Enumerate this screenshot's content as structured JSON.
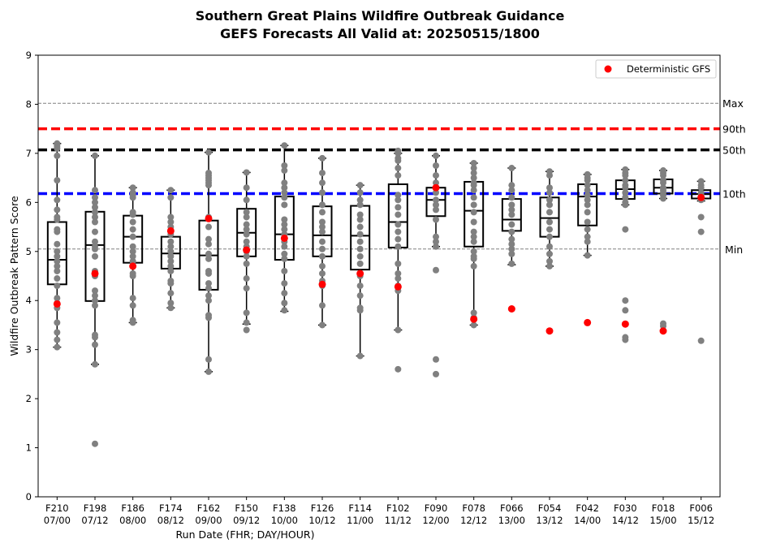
{
  "chart_data": {
    "type": "box",
    "title": [
      "Southern Great Plains Wildfire Outbreak Guidance",
      "GEFS Forecasts All Valid at: 20250515/1800"
    ],
    "xlabel": "Run Date (FHR; DAY/HOUR)",
    "ylabel": "Wildfire Outbreak Pattern Score",
    "ylim": [
      0,
      9
    ],
    "yticks": [
      "0",
      "1",
      "2",
      "3",
      "4",
      "5",
      "6",
      "7",
      "8",
      "9"
    ],
    "categories": [
      [
        "F210",
        "07/00"
      ],
      [
        "F198",
        "07/12"
      ],
      [
        "F186",
        "08/00"
      ],
      [
        "F174",
        "08/12"
      ],
      [
        "F162",
        "09/00"
      ],
      [
        "F150",
        "09/12"
      ],
      [
        "F138",
        "10/00"
      ],
      [
        "F126",
        "10/12"
      ],
      [
        "F114",
        "11/00"
      ],
      [
        "F102",
        "11/12"
      ],
      [
        "F090",
        "12/00"
      ],
      [
        "F078",
        "12/12"
      ],
      [
        "F066",
        "13/00"
      ],
      [
        "F054",
        "13/12"
      ],
      [
        "F042",
        "14/00"
      ],
      [
        "F030",
        "14/12"
      ],
      [
        "F018",
        "15/00"
      ],
      [
        "F006",
        "15/12"
      ]
    ],
    "boxes": [
      {
        "whislo": 3.05,
        "q1": 4.33,
        "med": 4.83,
        "q3": 5.6,
        "whishi": 7.2
      },
      {
        "whislo": 2.7,
        "q1": 3.99,
        "med": 5.13,
        "q3": 5.81,
        "whishi": 6.95
      },
      {
        "whislo": 3.55,
        "q1": 4.77,
        "med": 5.3,
        "q3": 5.73,
        "whishi": 6.3
      },
      {
        "whislo": 3.85,
        "q1": 4.65,
        "med": 4.96,
        "q3": 5.3,
        "whishi": 6.25
      },
      {
        "whislo": 2.55,
        "q1": 4.22,
        "med": 4.92,
        "q3": 5.63,
        "whishi": 7.02
      },
      {
        "whislo": 3.52,
        "q1": 4.9,
        "med": 5.38,
        "q3": 5.87,
        "whishi": 6.61
      },
      {
        "whislo": 3.78,
        "q1": 4.83,
        "med": 5.35,
        "q3": 6.12,
        "whishi": 7.16
      },
      {
        "whislo": 3.5,
        "q1": 4.9,
        "med": 5.33,
        "q3": 5.92,
        "whishi": 6.9
      },
      {
        "whislo": 2.87,
        "q1": 4.63,
        "med": 5.32,
        "q3": 5.93,
        "whishi": 6.35
      },
      {
        "whislo": 3.4,
        "q1": 5.08,
        "med": 5.6,
        "q3": 6.37,
        "whishi": 7.0
      },
      {
        "whislo": 5.1,
        "q1": 5.72,
        "med": 6.05,
        "q3": 6.3,
        "whishi": 6.95
      },
      {
        "whislo": 3.5,
        "q1": 5.1,
        "med": 5.83,
        "q3": 6.42,
        "whishi": 6.8
      },
      {
        "whislo": 4.73,
        "q1": 5.42,
        "med": 5.65,
        "q3": 6.07,
        "whishi": 6.7
      },
      {
        "whislo": 4.7,
        "q1": 5.3,
        "med": 5.68,
        "q3": 6.1,
        "whishi": 6.63
      },
      {
        "whislo": 4.92,
        "q1": 5.53,
        "med": 6.12,
        "q3": 6.37,
        "whishi": 6.57
      },
      {
        "whislo": 5.95,
        "q1": 6.07,
        "med": 6.27,
        "q3": 6.45,
        "whishi": 6.67
      },
      {
        "whislo": 6.08,
        "q1": 6.18,
        "med": 6.3,
        "q3": 6.47,
        "whishi": 6.65
      },
      {
        "whislo": 6.03,
        "q1": 6.08,
        "med": 6.17,
        "q3": 6.25,
        "whishi": 6.43
      }
    ],
    "members": [
      [
        7.2,
        7.15,
        7.1,
        6.95,
        6.45,
        6.05,
        5.85,
        5.7,
        5.65,
        5.45,
        5.4,
        5.15,
        5.0,
        4.9,
        4.8,
        4.7,
        4.6,
        4.45,
        4.3,
        4.05,
        3.95,
        3.85,
        3.55,
        3.35,
        3.2,
        3.05
      ],
      [
        6.95,
        6.25,
        6.1,
        6.0,
        5.9,
        5.8,
        5.7,
        5.6,
        5.4,
        5.2,
        5.1,
        5.05,
        4.9,
        4.6,
        4.5,
        4.2,
        4.1,
        4.0,
        3.9,
        3.3,
        3.25,
        3.1,
        2.7,
        1.08
      ],
      [
        6.3,
        6.2,
        6.15,
        6.1,
        5.8,
        5.75,
        5.6,
        5.45,
        5.3,
        5.1,
        5.0,
        4.9,
        4.8,
        4.7,
        4.55,
        4.5,
        4.05,
        3.9,
        3.6,
        3.55
      ],
      [
        6.25,
        6.1,
        5.7,
        5.6,
        5.5,
        5.4,
        5.35,
        5.2,
        5.1,
        5.0,
        4.9,
        4.8,
        4.7,
        4.6,
        4.4,
        4.35,
        4.15,
        3.95,
        3.85
      ],
      [
        7.02,
        6.6,
        6.55,
        6.5,
        6.45,
        6.4,
        6.35,
        5.7,
        5.5,
        5.25,
        5.15,
        4.95,
        4.85,
        4.6,
        4.55,
        4.35,
        4.25,
        4.1,
        4.0,
        3.7,
        3.65,
        2.8,
        2.55
      ],
      [
        6.61,
        6.3,
        6.05,
        5.8,
        5.7,
        5.55,
        5.45,
        5.35,
        5.2,
        5.1,
        5.0,
        4.9,
        4.75,
        4.45,
        4.25,
        3.75,
        3.55,
        3.4
      ],
      [
        7.16,
        6.75,
        6.65,
        6.4,
        6.3,
        6.2,
        6.1,
        5.95,
        5.65,
        5.55,
        5.45,
        5.35,
        5.2,
        5.1,
        4.95,
        4.85,
        4.6,
        4.35,
        4.15,
        3.95,
        3.8
      ],
      [
        6.9,
        6.6,
        6.4,
        6.2,
        5.95,
        5.8,
        5.6,
        5.5,
        5.4,
        5.2,
        5.05,
        4.9,
        4.7,
        4.55,
        4.4,
        4.3,
        3.9,
        3.5
      ],
      [
        6.35,
        6.2,
        6.05,
        5.95,
        5.75,
        5.65,
        5.5,
        5.35,
        5.2,
        5.05,
        4.9,
        4.75,
        4.5,
        4.3,
        4.1,
        3.85,
        3.8,
        2.87
      ],
      [
        7.05,
        7.0,
        6.9,
        6.85,
        6.7,
        6.55,
        6.15,
        6.05,
        5.9,
        5.75,
        5.55,
        5.4,
        5.25,
        5.1,
        4.75,
        4.55,
        4.45,
        4.3,
        4.2,
        3.4,
        2.6
      ],
      [
        6.95,
        6.75,
        6.55,
        6.4,
        6.3,
        6.2,
        6.05,
        5.95,
        5.85,
        5.65,
        5.3,
        5.2,
        5.1,
        4.62,
        2.8,
        2.5
      ],
      [
        6.8,
        6.7,
        6.6,
        6.5,
        6.4,
        6.35,
        6.25,
        6.1,
        5.95,
        5.8,
        5.6,
        5.4,
        5.3,
        5.2,
        5.0,
        4.9,
        4.85,
        4.7,
        3.75,
        3.65,
        3.5
      ],
      [
        6.7,
        6.35,
        6.25,
        6.1,
        5.95,
        5.85,
        5.75,
        5.55,
        5.4,
        5.25,
        5.15,
        5.05,
        4.95,
        4.75
      ],
      [
        6.63,
        6.55,
        6.3,
        6.2,
        6.05,
        5.95,
        5.8,
        5.6,
        5.45,
        5.3,
        5.1,
        4.95,
        4.8,
        4.7
      ],
      [
        6.57,
        6.5,
        6.45,
        6.35,
        6.25,
        6.15,
        6.05,
        5.95,
        5.8,
        5.6,
        5.45,
        5.3,
        5.2,
        4.92
      ],
      [
        6.67,
        6.6,
        6.55,
        6.45,
        6.35,
        6.3,
        6.2,
        6.1,
        6.0,
        5.95,
        5.45,
        4.0,
        3.8,
        3.25,
        3.2
      ],
      [
        6.65,
        6.6,
        6.55,
        6.45,
        6.4,
        6.3,
        6.25,
        6.2,
        6.15,
        6.08,
        3.53,
        3.48
      ],
      [
        6.43,
        6.35,
        6.3,
        6.2,
        6.15,
        6.1,
        6.05,
        5.7,
        5.4,
        3.18
      ]
    ],
    "deterministic": {
      "name": "Deterministic GFS",
      "values": [
        3.93,
        4.55,
        4.7,
        5.42,
        5.67,
        5.03,
        5.27,
        4.33,
        4.55,
        4.28,
        6.3,
        3.62,
        3.83,
        3.38,
        3.55,
        3.52,
        3.38,
        6.1
      ],
      "color": "#ff0000"
    },
    "reference_lines": [
      {
        "label": "Max",
        "value": 8.02,
        "color": "#808080",
        "style": "dashed-thin"
      },
      {
        "label": "90th",
        "value": 7.5,
        "color": "#ff0000",
        "style": "dashed-thick"
      },
      {
        "label": "50th",
        "value": 7.07,
        "color": "#000000",
        "style": "dashed-thick"
      },
      {
        "label": "10th",
        "value": 6.18,
        "color": "#0000ff",
        "style": "dashed-thick"
      },
      {
        "label": "Min",
        "value": 5.05,
        "color": "#808080",
        "style": "dashed-thin"
      }
    ],
    "member_color": "#808080",
    "legend_position": "top-right",
    "grid": false
  }
}
